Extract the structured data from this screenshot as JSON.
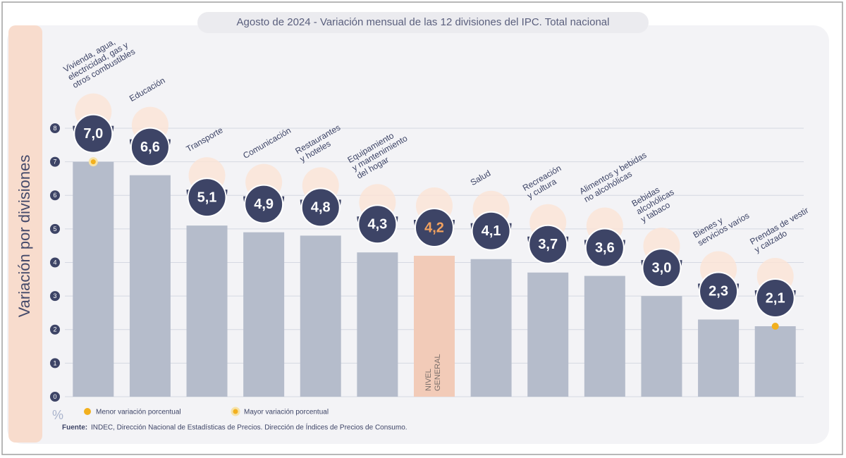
{
  "chart_data": {
    "type": "bar",
    "title": "Agosto de 2024 - Variación mensual de las 12 divisiones del IPC. Total nacional",
    "y_label": "Variación por divisiones",
    "unit": "%",
    "categories": [
      [
        "Vivienda, agua,",
        "electricidad, gas y",
        "otros combustibles"
      ],
      [
        "Educación"
      ],
      [
        "Transporte"
      ],
      [
        "Comunicación"
      ],
      [
        "Restaurantes",
        "y hoteles"
      ],
      [
        "Equipamiento",
        "y mantenimiento",
        "del hogar"
      ],
      [
        "NIVEL",
        "GENERAL"
      ],
      [
        "Salud"
      ],
      [
        "Recreación",
        "y cultura"
      ],
      [
        "Alimentos y bebidas",
        "no alcohólicas"
      ],
      [
        "Bebidas",
        "alcohólicas",
        "y tabaco"
      ],
      [
        "Bienes y",
        "servicios varios"
      ],
      [
        "Prendas de vestir",
        "y calzado"
      ]
    ],
    "values": [
      7.0,
      6.6,
      5.1,
      4.9,
      4.8,
      4.3,
      4.2,
      4.1,
      3.7,
      3.6,
      3.0,
      2.3,
      2.1
    ],
    "value_labels": [
      "7,0",
      "6,6",
      "5,1",
      "4,9",
      "4,8",
      "4,3",
      "4,2",
      "4,1",
      "3,7",
      "3,6",
      "3,0",
      "2,3",
      "2,1"
    ],
    "color": "#b5bccb",
    "highlight": {
      "bar": 6,
      "color": "#f2cbb8",
      "text_color": "#f3a25f"
    },
    "ylim": [
      0,
      8
    ],
    "yticks": [
      0,
      1,
      2,
      3,
      4,
      5,
      6,
      7,
      8
    ],
    "grid": true,
    "legend": [
      {
        "label": "Menor variación porcentual",
        "color": "#f2b01e",
        "bar": 12,
        "ring": false
      },
      {
        "label": "Mayor variación porcentual",
        "color": "#f2b01e",
        "bar": 0,
        "ring": true
      }
    ],
    "source_label": "Fuente:",
    "source": "INDEC, Dirección Nacional de Estadísticas de Precios. Dirección de Índices de Precios de Consumo."
  }
}
